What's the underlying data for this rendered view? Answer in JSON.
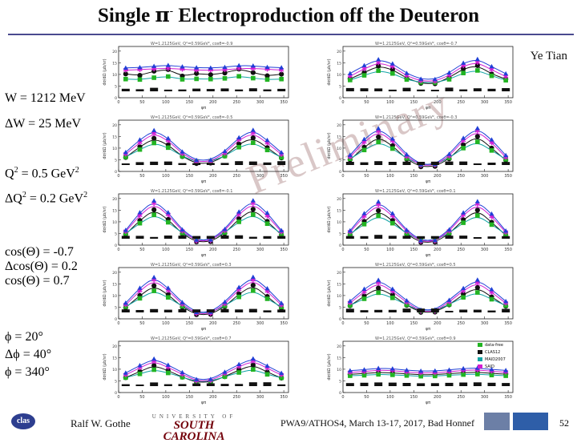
{
  "slide": {
    "title_pre": "Single",
    "title_pi": "π",
    "title_sup": "-",
    "title_post": "Electroproduction off the Deuteron",
    "author": "Ye Tian",
    "watermark": "Preliminary"
  },
  "labels": {
    "w": "W = 1212 MeV",
    "dw": "ΔW = 25 MeV",
    "q2_pre": "Q",
    "q2_sup": "2",
    "q2_post": " = 0.5 GeV",
    "q2_unit_sup": "2",
    "dq2_pre": "ΔQ",
    "dq2_sup": "2",
    "dq2_post": " = 0.2 GeV",
    "dq2_unit_sup": "2",
    "cos1": "cos(Θ) = -0.7",
    "cos2": "Δcos(Θ) = 0.2",
    "cos3": "cos(Θ) = 0.7",
    "phi1": "ϕ  = 20°",
    "phi2": "Δϕ  = 40°",
    "phi3": "ϕ = 340°"
  },
  "footer": {
    "clas": "clas",
    "presenter": "Ralf  W. Gothe",
    "univ_top": "UNIVERSITY OF",
    "univ_name": "SOUTH CAROLINA",
    "conference": "PWA9/ATHOS4, March 13-17, 2017, Bad Honnef",
    "page": "52"
  },
  "colors": {
    "black": "#111111",
    "green": "#22b422",
    "blue": "#1f3fd6",
    "magenta": "#d21ed2",
    "red": "#d01c1c",
    "cyan": "#12a5a5"
  },
  "chart_data": {
    "type": "scatter",
    "x": [
      15,
      45,
      75,
      105,
      135,
      165,
      195,
      225,
      255,
      285,
      315,
      345
    ],
    "xlim": [
      0,
      360
    ],
    "xticks": [
      "0",
      "50",
      "100",
      "150",
      "200",
      "250",
      "300",
      "350"
    ],
    "xlabel": "φπ",
    "ylabel": "dσ/dΩ (μb/sr)",
    "legend": [
      "data-free",
      "CLAS12",
      "MAID2007",
      "SAID"
    ],
    "panels": [
      {
        "title": "W=1.2125GeV, Q²=0.59GeV², cosθ=-0.9",
        "ylim": [
          0,
          22
        ],
        "series": [
          {
            "name": "black",
            "values": [
              10.2,
              9.6,
              11.4,
              12.1,
              9.3,
              10.4,
              9.9,
              10.6,
              12.3,
              10.8,
              9.4,
              10.1
            ]
          },
          {
            "name": "green",
            "values": [
              8.0,
              7.8,
              8.6,
              9.1,
              7.9,
              8.1,
              8.0,
              8.3,
              9.2,
              8.4,
              7.8,
              8.0
            ]
          },
          {
            "name": "magenta",
            "values": [
              11.8,
              12.1,
              12.4,
              12.6,
              12.2,
              11.9,
              11.8,
              12.0,
              12.5,
              12.6,
              12.2,
              11.9
            ]
          },
          {
            "name": "blue",
            "values": [
              12.8,
              13.0,
              13.5,
              13.9,
              13.3,
              12.9,
              12.8,
              13.1,
              13.8,
              13.7,
              13.1,
              12.9
            ]
          }
        ]
      },
      {
        "title": "W=1.2125GeV, Q²=0.59GeV², cosθ=-0.7",
        "ylim": [
          0,
          22
        ],
        "series": [
          {
            "name": "black",
            "values": [
              8.1,
              10.8,
              13.6,
              12.1,
              8.4,
              6.2,
              6.0,
              8.6,
              12.4,
              13.8,
              10.2,
              8.0
            ]
          },
          {
            "name": "green",
            "values": [
              7.6,
              9.6,
              11.6,
              10.4,
              7.8,
              6.6,
              6.5,
              7.9,
              10.6,
              11.7,
              9.4,
              7.5
            ]
          },
          {
            "name": "magenta",
            "values": [
              9.2,
              12.4,
              15.0,
              13.4,
              9.4,
              7.2,
              7.1,
              9.6,
              13.7,
              15.1,
              12.0,
              9.1
            ]
          },
          {
            "name": "blue",
            "values": [
              10.4,
              13.8,
              16.4,
              14.6,
              10.5,
              8.0,
              7.9,
              10.7,
              14.9,
              16.5,
              13.4,
              10.3
            ]
          }
        ]
      },
      {
        "title": "W=1.2125GeV, Q²=0.59GeV², cosθ=-0.5",
        "ylim": [
          0,
          22
        ],
        "series": [
          {
            "name": "black",
            "values": [
              6.0,
              10.6,
              14.2,
              11.4,
              6.4,
              3.4,
              3.6,
              6.6,
              11.8,
              14.4,
              10.2,
              5.8
            ]
          },
          {
            "name": "green",
            "values": [
              6.2,
              9.4,
              12.2,
              10.2,
              6.5,
              4.2,
              4.3,
              6.6,
              10.4,
              12.3,
              9.2,
              6.0
            ]
          },
          {
            "name": "magenta",
            "values": [
              7.4,
              12.4,
              16.4,
              13.2,
              7.6,
              4.2,
              4.3,
              7.8,
              13.5,
              16.5,
              12.2,
              7.3
            ]
          },
          {
            "name": "blue",
            "values": [
              8.2,
              13.6,
              17.6,
              14.2,
              8.4,
              4.8,
              4.9,
              8.6,
              14.5,
              17.7,
              13.4,
              8.1
            ]
          }
        ]
      },
      {
        "title": "W=1.2125GeV, Q²=0.59GeV², cosθ=-0.3",
        "ylim": [
          0,
          22
        ],
        "series": [
          {
            "name": "black",
            "values": [
              5.0,
              10.4,
              14.8,
              11.0,
              5.2,
              2.0,
              2.2,
              5.4,
              11.4,
              15.0,
              10.0,
              4.8
            ]
          },
          {
            "name": "green",
            "values": [
              5.4,
              9.2,
              12.6,
              9.8,
              5.6,
              2.9,
              3.0,
              5.8,
              10.0,
              12.7,
              9.0,
              5.2
            ]
          },
          {
            "name": "magenta",
            "values": [
              6.2,
              12.6,
              17.2,
              13.0,
              6.4,
              2.6,
              2.7,
              6.6,
              13.3,
              17.3,
              12.4,
              6.1
            ]
          },
          {
            "name": "blue",
            "values": [
              7.0,
              13.8,
              18.4,
              14.0,
              7.2,
              3.0,
              3.1,
              7.4,
              14.3,
              18.5,
              13.6,
              6.9
            ]
          }
        ]
      },
      {
        "title": "W=1.2125GeV, Q²=0.59GeV², cosθ=-0.1",
        "ylim": [
          0,
          22
        ],
        "series": [
          {
            "name": "black",
            "values": [
              4.6,
              10.6,
              15.2,
              11.0,
              4.8,
              1.4,
              1.5,
              5.0,
              11.3,
              15.4,
              10.2,
              4.4
            ]
          },
          {
            "name": "green",
            "values": [
              5.0,
              9.4,
              13.0,
              9.8,
              5.2,
              2.2,
              2.3,
              5.4,
              10.0,
              13.1,
              9.2,
              4.9
            ]
          },
          {
            "name": "magenta",
            "values": [
              5.8,
              12.8,
              17.8,
              13.0,
              6.0,
              1.8,
              1.9,
              6.2,
              13.3,
              17.9,
              12.6,
              5.7
            ]
          },
          {
            "name": "blue",
            "values": [
              6.4,
              14.0,
              19.0,
              14.0,
              6.6,
              2.2,
              2.3,
              6.8,
              14.3,
              19.1,
              13.8,
              6.3
            ]
          }
        ]
      },
      {
        "title": "W=1.2125GeV, Q²=0.59GeV², cosθ=0.1",
        "ylim": [
          0,
          22
        ],
        "series": [
          {
            "name": "black",
            "values": [
              4.4,
              10.2,
              14.8,
              10.6,
              4.6,
              1.2,
              1.3,
              4.8,
              10.9,
              15.0,
              9.8,
              4.2
            ]
          },
          {
            "name": "green",
            "values": [
              4.8,
              9.0,
              12.6,
              9.4,
              5.0,
              2.0,
              2.1,
              5.2,
              9.6,
              12.7,
              8.8,
              4.7
            ]
          },
          {
            "name": "magenta",
            "values": [
              5.6,
              12.4,
              17.4,
              12.6,
              5.8,
              1.6,
              1.7,
              6.0,
              12.9,
              17.5,
              12.2,
              5.5
            ]
          },
          {
            "name": "blue",
            "values": [
              6.2,
              13.6,
              18.6,
              13.6,
              6.4,
              2.0,
              2.1,
              6.6,
              13.9,
              18.7,
              13.4,
              6.1
            ]
          }
        ]
      },
      {
        "title": "W=1.2125GeV, Q²=0.59GeV², cosθ=0.3",
        "ylim": [
          0,
          22
        ],
        "series": [
          {
            "name": "black",
            "values": [
              4.8,
              10.0,
              14.2,
              10.4,
              5.0,
              1.8,
              1.9,
              5.2,
              10.7,
              14.4,
              9.6,
              4.6
            ]
          },
          {
            "name": "green",
            "values": [
              5.2,
              8.8,
              12.0,
              9.2,
              5.4,
              2.6,
              2.7,
              5.6,
              9.4,
              12.1,
              8.6,
              5.1
            ]
          },
          {
            "name": "magenta",
            "values": [
              6.0,
              12.0,
              16.6,
              12.2,
              6.2,
              2.2,
              2.3,
              6.4,
              12.5,
              16.7,
              11.8,
              5.9
            ]
          },
          {
            "name": "blue",
            "values": [
              6.8,
              13.2,
              17.8,
              13.2,
              7.0,
              2.8,
              2.9,
              7.2,
              13.5,
              17.9,
              13.0,
              6.7
            ]
          }
        ]
      },
      {
        "title": "W=1.2125GeV, Q²=0.59GeV², cosθ=0.5",
        "ylim": [
          0,
          22
        ],
        "series": [
          {
            "name": "black",
            "values": [
              5.6,
              9.8,
              13.2,
              10.2,
              5.8,
              2.8,
              2.9,
              6.0,
              10.5,
              13.4,
              9.4,
              5.4
            ]
          },
          {
            "name": "green",
            "values": [
              5.8,
              8.6,
              11.2,
              9.0,
              6.0,
              3.4,
              3.5,
              6.2,
              9.2,
              11.3,
              8.4,
              5.7
            ]
          },
          {
            "name": "magenta",
            "values": [
              6.8,
              11.6,
              15.4,
              11.8,
              7.0,
              3.2,
              3.3,
              7.2,
              12.1,
              15.5,
              11.4,
              6.7
            ]
          },
          {
            "name": "blue",
            "values": [
              7.6,
              12.8,
              16.6,
              12.8,
              7.8,
              3.8,
              3.9,
              8.0,
              13.1,
              16.7,
              12.6,
              7.5
            ]
          }
        ]
      },
      {
        "title": "W=1.2125GeV, Q²=0.59GeV², cosθ=0.7",
        "ylim": [
          0,
          22
        ],
        "series": [
          {
            "name": "black",
            "values": [
              6.4,
              9.0,
              11.6,
              9.4,
              6.6,
              4.4,
              4.5,
              6.8,
              9.7,
              11.8,
              8.8,
              6.2
            ]
          },
          {
            "name": "green",
            "values": [
              6.4,
              8.0,
              9.8,
              8.4,
              6.6,
              4.8,
              4.9,
              6.8,
              8.6,
              9.9,
              7.8,
              6.3
            ]
          },
          {
            "name": "magenta",
            "values": [
              7.6,
              10.6,
              13.4,
              10.8,
              7.8,
              5.0,
              5.1,
              8.0,
              11.1,
              13.5,
              10.4,
              7.5
            ]
          },
          {
            "name": "blue",
            "values": [
              8.4,
              11.6,
              14.4,
              11.8,
              8.6,
              5.6,
              5.7,
              8.8,
              12.1,
              14.5,
              11.4,
              8.3
            ]
          }
        ]
      },
      {
        "title": "W=1.2125GeV, Q²=0.59GeV², cosθ=0.9",
        "ylim": [
          0,
          22
        ],
        "series": [
          {
            "name": "black",
            "values": [
              7.8,
              8.2,
              8.6,
              8.4,
              8.0,
              7.6,
              7.7,
              8.1,
              8.5,
              8.7,
              8.2,
              7.9
            ]
          },
          {
            "name": "green",
            "values": [
              7.2,
              7.4,
              7.8,
              7.6,
              7.3,
              7.0,
              7.1,
              7.4,
              7.7,
              7.9,
              7.5,
              7.2
            ]
          },
          {
            "name": "magenta",
            "values": [
              8.6,
              9.0,
              9.6,
              9.4,
              8.8,
              8.4,
              8.5,
              8.9,
              9.5,
              9.7,
              9.1,
              8.7
            ]
          },
          {
            "name": "blue",
            "values": [
              9.4,
              9.8,
              10.4,
              10.2,
              9.6,
              9.2,
              9.3,
              9.7,
              10.3,
              10.5,
              9.9,
              9.5
            ]
          }
        ]
      }
    ]
  }
}
